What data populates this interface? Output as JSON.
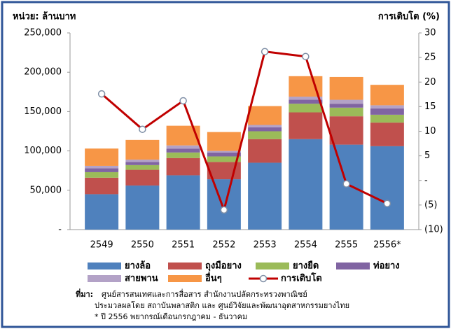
{
  "chart_data": {
    "type": "bar",
    "stacked": true,
    "y_label": "หน่วย: ล้านบาท",
    "y2_label": "การเติบโต (%)",
    "categories": [
      "2549",
      "2550",
      "2551",
      "2552",
      "2553",
      "2554",
      "2555",
      "2556*"
    ],
    "series": [
      {
        "name": "ยางล้อ",
        "color": "#4f81bd",
        "values": [
          45000,
          56000,
          69000,
          64000,
          85000,
          115000,
          108000,
          106000
        ]
      },
      {
        "name": "ถุงมือยาง",
        "color": "#c0504d",
        "values": [
          21000,
          20000,
          22000,
          22000,
          30000,
          34000,
          36000,
          30000
        ]
      },
      {
        "name": "ยางยืด",
        "color": "#9bbb59",
        "values": [
          7000,
          6000,
          7000,
          7000,
          10000,
          11000,
          11000,
          10000
        ]
      },
      {
        "name": "ท่อยาง",
        "color": "#8064a2",
        "values": [
          5000,
          4000,
          5000,
          5000,
          5000,
          5000,
          5000,
          8000
        ]
      },
      {
        "name": "สายพาน",
        "color": "#b3a2c7",
        "values": [
          3000,
          3000,
          4000,
          2000,
          3000,
          4000,
          5000,
          4000
        ]
      },
      {
        "name": "อื่นๆ",
        "color": "#f79646",
        "values": [
          22000,
          25000,
          25000,
          24000,
          24000,
          26000,
          29000,
          26000
        ]
      },
      {
        "name": "การเติบโต",
        "color": "#c00000",
        "type": "line",
        "axis": "y2",
        "values": [
          17.6,
          10.4,
          16.2,
          -6.0,
          26.2,
          25.2,
          -0.7,
          -4.7
        ]
      }
    ],
    "ylim": [
      0,
      250000
    ],
    "yticks": [
      {
        "value": 0,
        "label": "-"
      },
      {
        "value": 50000,
        "label": "50,000"
      },
      {
        "value": 100000,
        "label": "100,000"
      },
      {
        "value": 150000,
        "label": "150,000"
      },
      {
        "value": 200000,
        "label": "200,000"
      },
      {
        "value": 250000,
        "label": "250,000"
      }
    ],
    "y2lim": [
      -10,
      30
    ],
    "y2ticks": [
      {
        "value": -10,
        "label": "(10)"
      },
      {
        "value": -5,
        "label": "(5)"
      },
      {
        "value": 0,
        "label": "-"
      },
      5,
      10,
      15,
      20,
      25,
      30
    ],
    "legend": "bottom",
    "source_label": "ที่มา:",
    "notes": [
      "ศูนย์สารสนเทศและการสื่อสาร สำนักงานปลัดกระทรวงพาณิชย์",
      "ประมวลผลโดย สถาบันพลาสติก และ ศูนย์วิจัยและพัฒนาอุตสาหกรรมยางไทย",
      "* ปี 2556 พยากรณ์เดือนกรกฎาคม - ธันวาคม"
    ]
  }
}
